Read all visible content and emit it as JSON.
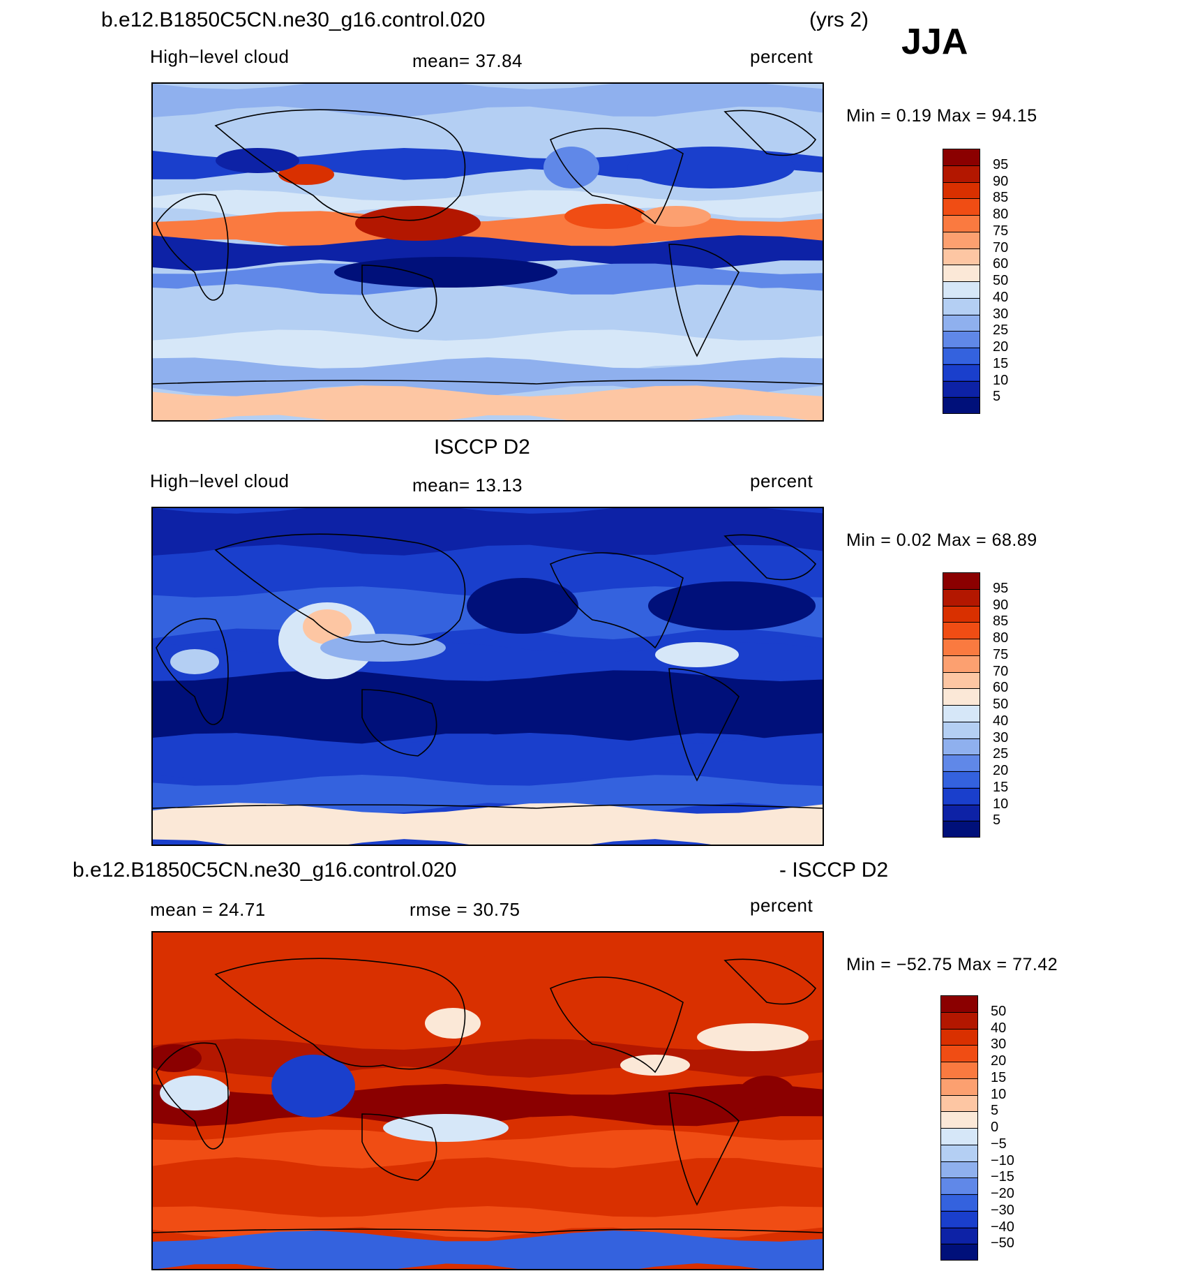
{
  "header": {
    "case_name": "b.e12.B1850C5CN.ne30_g16.control.020",
    "years": "(yrs 2)",
    "season": "JJA"
  },
  "panels": [
    {
      "title": "b.e12.B1850C5CN.ne30_g16.control.020",
      "left": "High−level cloud",
      "center": "mean=   37.84",
      "right": "percent",
      "minmax": "Min =     0.19  Max =    94.15",
      "palette": "model",
      "colorbar": {
        "labels": [
          "95",
          "90",
          "85",
          "80",
          "75",
          "70",
          "60",
          "50",
          "40",
          "30",
          "25",
          "20",
          "15",
          "10",
          "5"
        ],
        "colors": [
          "#8b0000",
          "#b31700",
          "#d93000",
          "#f04d14",
          "#fa7a40",
          "#fca070",
          "#fdc6a3",
          "#fbe8d7",
          "#d6e7f8",
          "#b4cff3",
          "#8fb0ee",
          "#6088e8",
          "#3462de",
          "#1a3fcc",
          "#0d22a6",
          "#00107a"
        ]
      }
    },
    {
      "title": "ISCCP D2",
      "left": "High−level cloud",
      "center": "mean=   13.13",
      "right": "percent",
      "minmax": "Min =     0.02  Max =    68.89",
      "palette": "obs",
      "colorbar": {
        "labels": [
          "95",
          "90",
          "85",
          "80",
          "75",
          "70",
          "60",
          "50",
          "40",
          "30",
          "25",
          "20",
          "15",
          "10",
          "5"
        ],
        "colors": [
          "#8b0000",
          "#b31700",
          "#d93000",
          "#f04d14",
          "#fa7a40",
          "#fca070",
          "#fdc6a3",
          "#fbe8d7",
          "#d6e7f8",
          "#b4cff3",
          "#8fb0ee",
          "#6088e8",
          "#3462de",
          "#1a3fcc",
          "#0d22a6",
          "#00107a"
        ]
      }
    },
    {
      "title": "b.e12.B1850C5CN.ne30_g16.control.020",
      "title_right": "- ISCCP D2",
      "left": "mean =    24.71",
      "center": "rmse =    30.75",
      "right": "percent",
      "minmax": "Min = −52.75  Max =    77.42",
      "palette": "diff",
      "colorbar": {
        "labels": [
          "50",
          "40",
          "30",
          "20",
          "15",
          "10",
          "5",
          "0",
          "−5",
          "−10",
          "−15",
          "−20",
          "−30",
          "−40",
          "−50"
        ],
        "colors": [
          "#8b0000",
          "#b31700",
          "#d93000",
          "#f04d14",
          "#fa7a40",
          "#fca070",
          "#fdc6a3",
          "#fbe8d7",
          "#d6e7f8",
          "#b4cff3",
          "#8fb0ee",
          "#6088e8",
          "#3462de",
          "#1a3fcc",
          "#0d22a6",
          "#00107a"
        ]
      }
    }
  ]
}
